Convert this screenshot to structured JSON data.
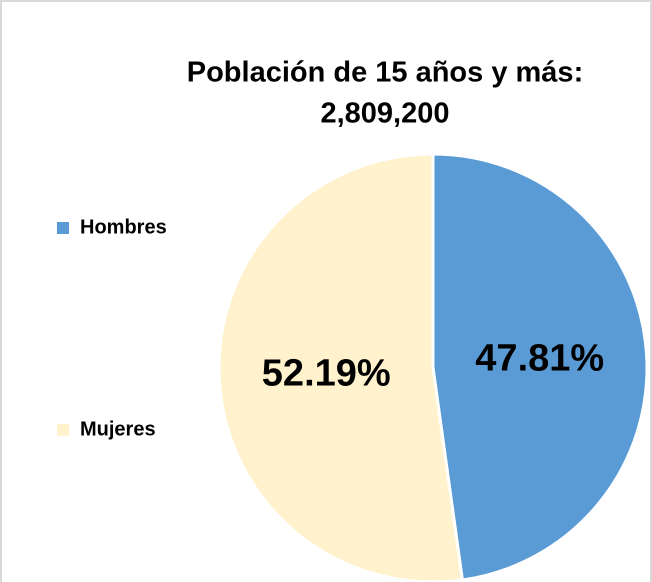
{
  "chart_data": {
    "type": "pie",
    "title": "Población de 15 años y más:",
    "subtitle": "2,809,200",
    "categories": [
      "Hombres",
      "Mujeres"
    ],
    "values": [
      47.81,
      52.19
    ],
    "value_labels": [
      "47.81%",
      "52.19%"
    ],
    "colors": [
      "#5b9bd5",
      "#fff2cc"
    ],
    "legend": "left"
  }
}
